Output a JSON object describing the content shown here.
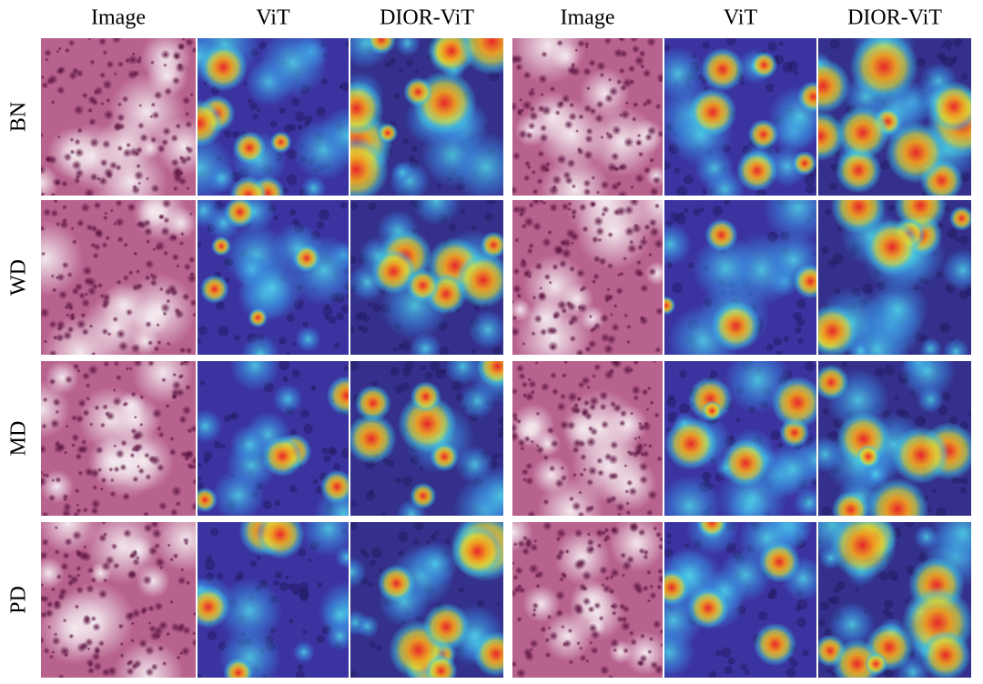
{
  "header": {
    "columns": [
      "Image",
      "ViT",
      "DIOR-ViT",
      "Image",
      "ViT",
      "DIOR-ViT"
    ]
  },
  "rows": [
    "BN",
    "WD",
    "MD",
    "PD"
  ]
}
